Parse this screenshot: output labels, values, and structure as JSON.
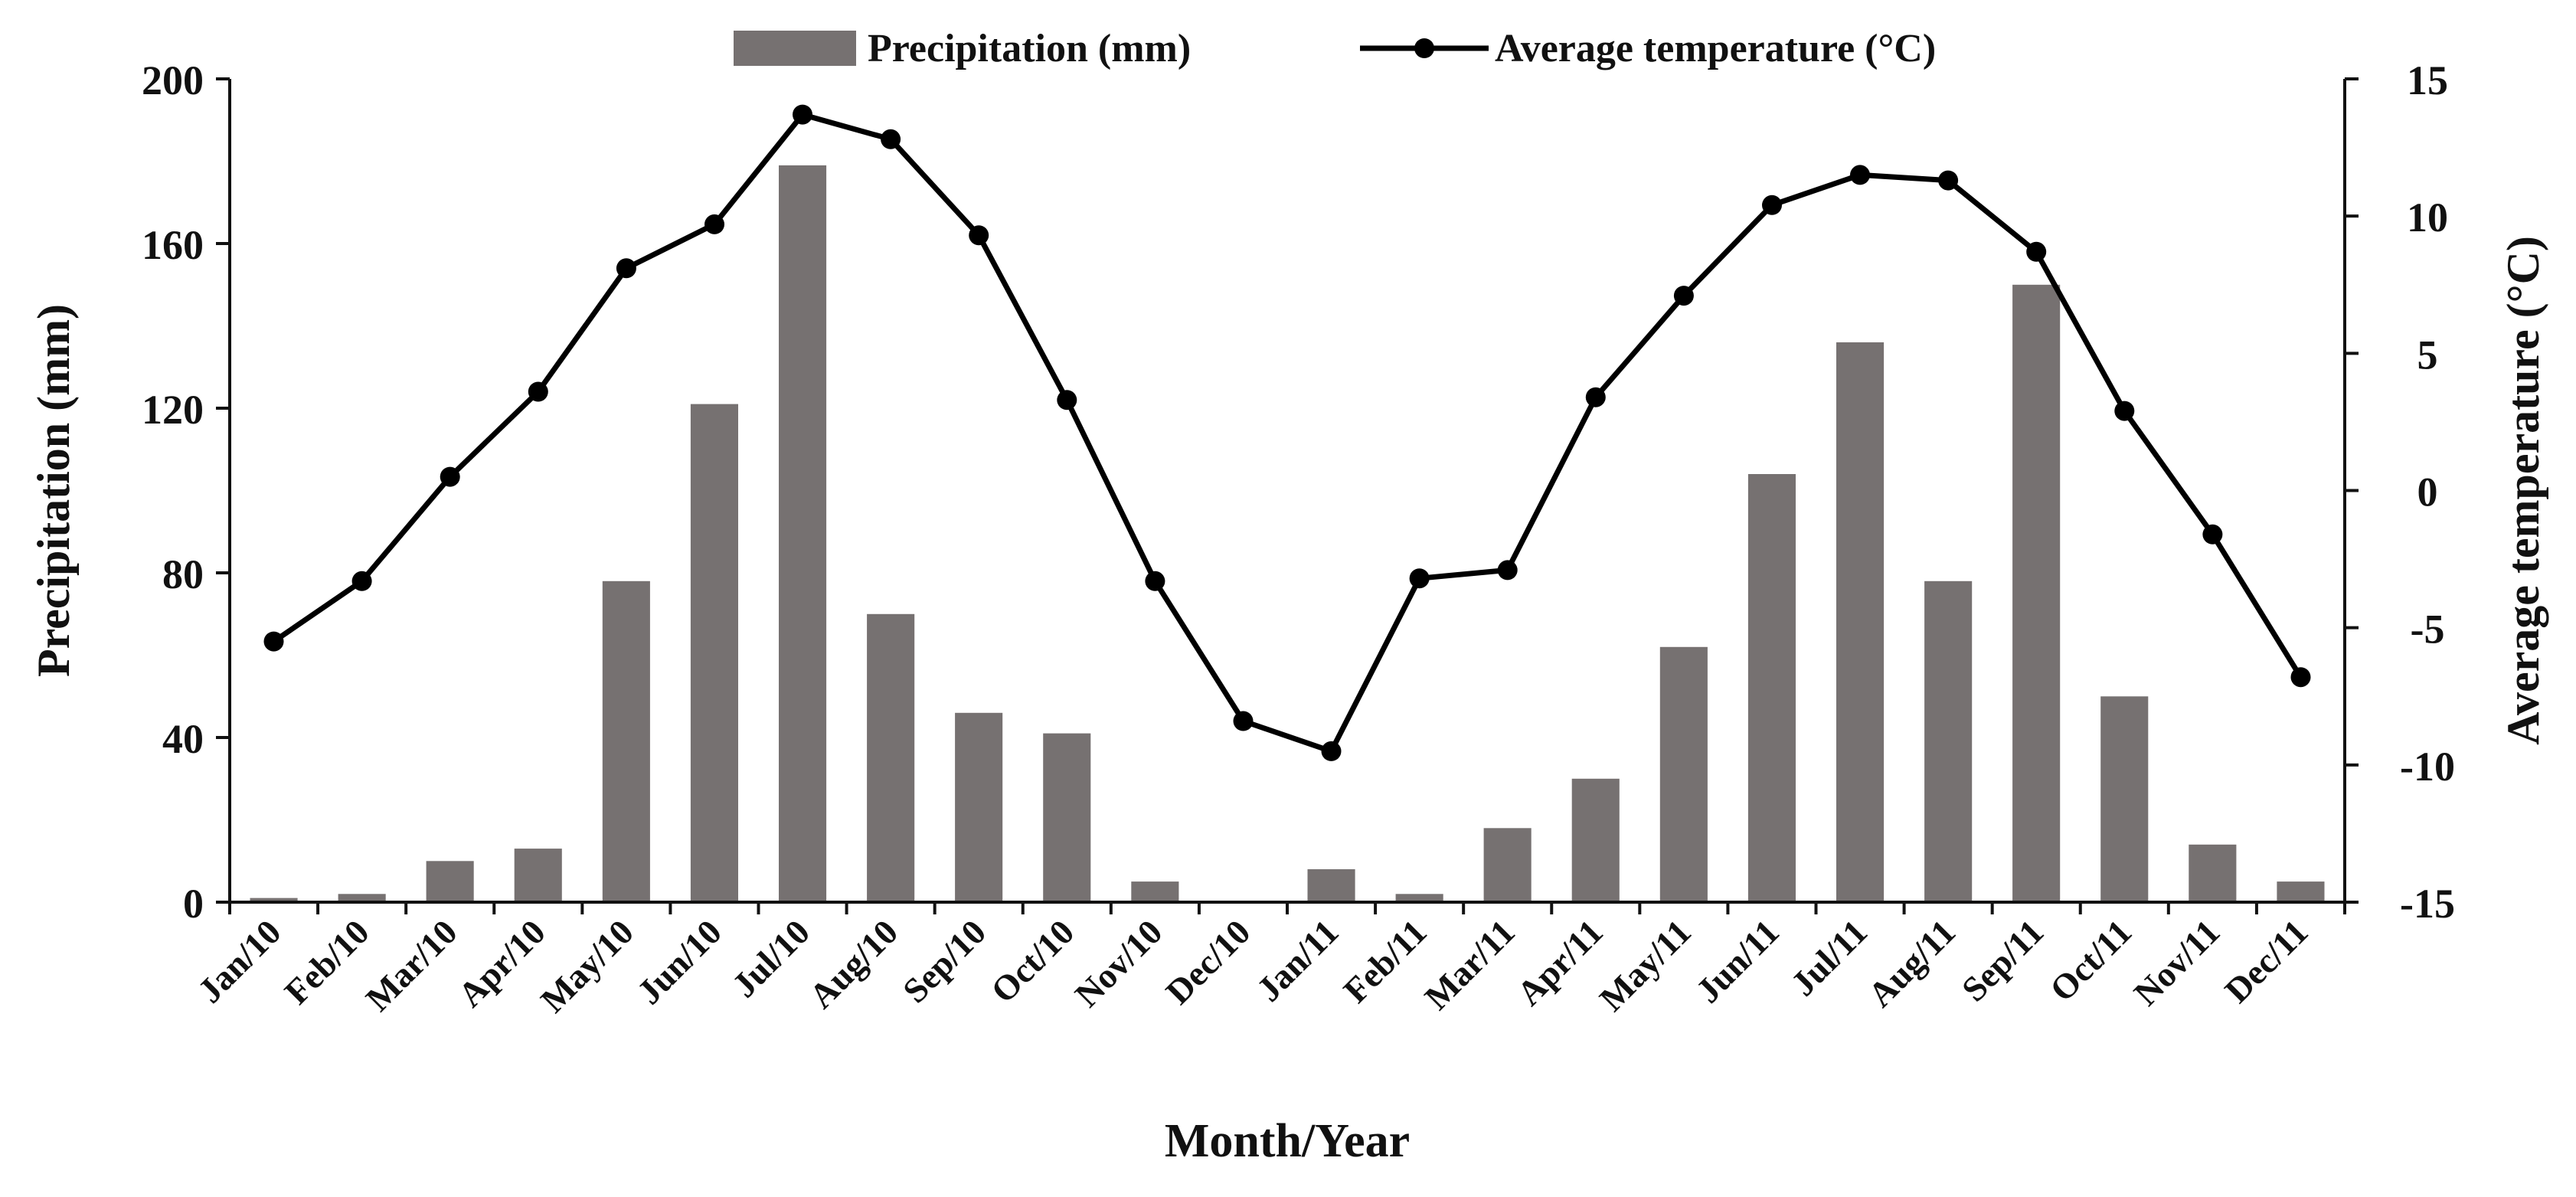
{
  "chart_data": {
    "type": "bar+line",
    "title": "",
    "xlabel": "Month/Year",
    "ylabel": "Precipitation (mm)",
    "y2label": "Average temperature (°C)",
    "categories": [
      "Jan/10",
      "Feb/10",
      "Mar/10",
      "Apr/10",
      "May/10",
      "Jun/10",
      "Jul/10",
      "Aug/10",
      "Sep/10",
      "Oct/10",
      "Nov/10",
      "Dec/10",
      "Jan/11",
      "Feb/11",
      "Mar/11",
      "Apr/11",
      "May/11",
      "Jun/11",
      "Jul/11",
      "Aug/11",
      "Sep/11",
      "Oct/11",
      "Nov/11",
      "Dec/11"
    ],
    "ylim": [
      0,
      200
    ],
    "y2lim": [
      -15,
      15
    ],
    "yticks": [
      0,
      40,
      80,
      120,
      160,
      200
    ],
    "y2ticks": [
      -15,
      -10,
      -5,
      0,
      5,
      10,
      15
    ],
    "grid": false,
    "legend_position": "top-center",
    "series": [
      {
        "name": "Precipitation (mm)",
        "type": "bar",
        "axis": "left",
        "color": "#767171",
        "values": [
          1,
          2,
          10,
          13,
          78,
          121,
          179,
          70,
          46,
          41,
          5,
          0,
          8,
          2,
          18,
          30,
          62,
          104,
          136,
          78,
          150,
          50,
          14,
          5
        ]
      },
      {
        "name": "Average temperature (°C)",
        "type": "line",
        "axis": "right",
        "color": "#000000",
        "values": [
          -5.5,
          -3.3,
          0.5,
          3.6,
          8.1,
          9.7,
          13.7,
          12.8,
          9.3,
          3.3,
          -3.3,
          -8.4,
          -9.5,
          -3.2,
          -2.9,
          3.4,
          7.1,
          10.4,
          11.5,
          11.3,
          8.7,
          2.9,
          -1.6,
          -6.8
        ]
      }
    ],
    "legend": {
      "bar_label": "Precipitation (mm)",
      "line_label": "Average temperature (°C)"
    }
  }
}
